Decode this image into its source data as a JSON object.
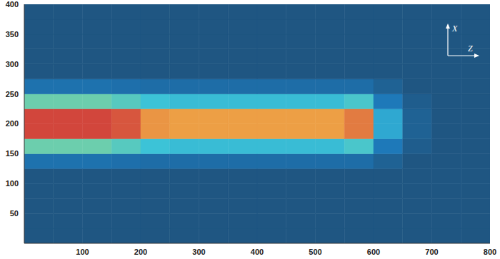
{
  "chart_data": {
    "type": "heatmap",
    "annotations": [
      "X",
      "Z"
    ],
    "xlim": [
      0,
      800
    ],
    "xticks": [
      100,
      200,
      300,
      400,
      500,
      600,
      700,
      800
    ],
    "ylim": [
      0,
      400
    ],
    "yticks": [
      50,
      100,
      150,
      200,
      250,
      300,
      350,
      400
    ],
    "x": [
      0,
      50,
      100,
      150,
      200,
      250,
      300,
      350,
      400,
      450,
      500,
      550,
      600,
      650,
      700,
      750,
      800
    ],
    "y": [
      0,
      25,
      50,
      75,
      100,
      125,
      150,
      175,
      200,
      225,
      250,
      275,
      300,
      325,
      350,
      375,
      400
    ],
    "cells": [
      [
        0,
        0,
        0,
        0,
        0,
        0,
        0,
        0,
        0,
        0,
        0,
        0,
        0,
        0,
        0,
        0
      ],
      [
        0,
        0,
        0,
        0,
        0,
        0,
        0,
        0,
        0,
        0,
        0,
        0,
        0,
        0,
        0,
        0
      ],
      [
        0,
        0,
        0,
        0,
        0,
        0,
        0,
        0,
        0,
        0,
        0,
        0,
        0,
        0,
        0,
        0
      ],
      [
        0,
        0,
        0,
        0,
        0,
        0,
        0,
        0,
        0,
        0,
        0,
        0,
        0,
        0,
        0,
        0
      ],
      [
        0,
        0,
        0,
        0,
        0,
        0,
        0,
        0,
        0,
        0,
        0,
        0,
        0,
        0,
        0,
        0
      ],
      [
        0.12,
        0.12,
        0.12,
        0.11,
        0.1,
        0.1,
        0.1,
        0.1,
        0.1,
        0.1,
        0.1,
        0.1,
        0.05,
        0,
        0,
        0
      ],
      [
        0.45,
        0.45,
        0.45,
        0.42,
        0.38,
        0.36,
        0.36,
        0.36,
        0.36,
        0.36,
        0.36,
        0.4,
        0.15,
        0.03,
        0,
        0
      ],
      [
        0.95,
        0.95,
        0.95,
        0.92,
        0.8,
        0.78,
        0.78,
        0.78,
        0.78,
        0.78,
        0.78,
        0.85,
        0.3,
        0.05,
        0,
        0
      ],
      [
        0.95,
        0.95,
        0.95,
        0.92,
        0.8,
        0.78,
        0.78,
        0.78,
        0.78,
        0.78,
        0.78,
        0.85,
        0.3,
        0.05,
        0,
        0
      ],
      [
        0.45,
        0.45,
        0.45,
        0.42,
        0.38,
        0.36,
        0.36,
        0.36,
        0.36,
        0.36,
        0.36,
        0.4,
        0.15,
        0.03,
        0,
        0
      ],
      [
        0.12,
        0.12,
        0.12,
        0.11,
        0.1,
        0.1,
        0.1,
        0.1,
        0.1,
        0.1,
        0.1,
        0.1,
        0.05,
        0,
        0,
        0
      ],
      [
        0,
        0,
        0,
        0,
        0,
        0,
        0,
        0,
        0,
        0,
        0,
        0,
        0,
        0,
        0,
        0
      ],
      [
        0,
        0,
        0,
        0,
        0,
        0,
        0,
        0,
        0,
        0,
        0,
        0,
        0,
        0,
        0,
        0
      ],
      [
        0,
        0,
        0,
        0,
        0,
        0,
        0,
        0,
        0,
        0,
        0,
        0,
        0,
        0,
        0,
        0
      ],
      [
        0,
        0,
        0,
        0,
        0,
        0,
        0,
        0,
        0,
        0,
        0,
        0,
        0,
        0,
        0,
        0
      ],
      [
        0,
        0,
        0,
        0,
        0,
        0,
        0,
        0,
        0,
        0,
        0,
        0,
        0,
        0,
        0,
        0
      ]
    ]
  }
}
